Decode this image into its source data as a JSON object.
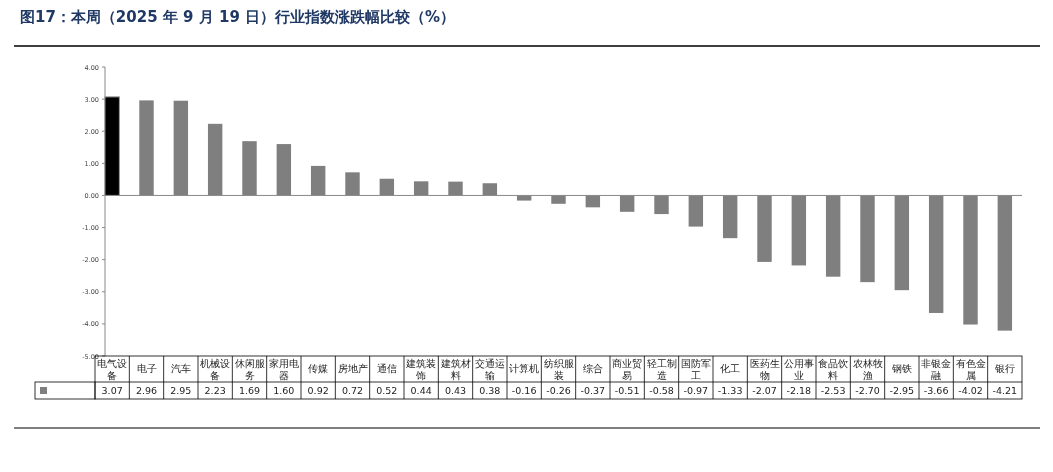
{
  "chart_data": {
    "type": "bar",
    "title": "图17：本周（2025 年 9 月 19 日）行业指数涨跌幅比较（%）",
    "categories": [
      "电气设备",
      "电子",
      "汽车",
      "机械设备",
      "休闲服务",
      "家用电器",
      "传媒",
      "房地产",
      "通信",
      "建筑装饰",
      "建筑材料",
      "交通运输",
      "计算机",
      "纺织服装",
      "综合",
      "商业贸易",
      "轻工制造",
      "国防军工",
      "化工",
      "医药生物",
      "公用事业",
      "食品饮料",
      "农林牧渔",
      "钢铁",
      "非银金融",
      "有色金属",
      "银行"
    ],
    "values": [
      3.07,
      2.96,
      2.95,
      2.23,
      1.69,
      1.6,
      0.92,
      0.72,
      0.52,
      0.44,
      0.43,
      0.38,
      -0.16,
      -0.26,
      -0.37,
      -0.51,
      -0.58,
      -0.97,
      -1.33,
      -2.07,
      -2.18,
      -2.53,
      -2.7,
      -2.95,
      -3.66,
      -4.02,
      -4.21
    ],
    "colors": [
      "#000000",
      "#7f7f7f",
      "#7f7f7f",
      "#7f7f7f",
      "#7f7f7f",
      "#7f7f7f",
      "#7f7f7f",
      "#7f7f7f",
      "#7f7f7f",
      "#7f7f7f",
      "#7f7f7f",
      "#7f7f7f",
      "#7f7f7f",
      "#7f7f7f",
      "#7f7f7f",
      "#7f7f7f",
      "#7f7f7f",
      "#7f7f7f",
      "#7f7f7f",
      "#7f7f7f",
      "#7f7f7f",
      "#7f7f7f",
      "#7f7f7f",
      "#7f7f7f",
      "#7f7f7f",
      "#7f7f7f",
      "#7f7f7f"
    ],
    "value_labels": [
      "3.07",
      "2.96",
      "2.95",
      "2.23",
      "1.69",
      "1.60",
      "0.92",
      "0.72",
      "0.52",
      "0.44",
      "0.43",
      "0.38",
      "-0.16",
      "-0.26",
      "-0.37",
      "-0.51",
      "-0.58",
      "-0.97",
      "-1.33",
      "-2.07",
      "-2.18",
      "-2.53",
      "-2.70",
      "-2.95",
      "-3.66",
      "-4.02",
      "-4.21"
    ],
    "ylim": [
      -5,
      4
    ],
    "yticks": [
      {
        "value": 4,
        "label": "4.00"
      },
      {
        "value": 3,
        "label": "3.00"
      },
      {
        "value": 2,
        "label": "2.00"
      },
      {
        "value": 1,
        "label": "1.00"
      },
      {
        "value": 0,
        "label": "0.00"
      },
      {
        "value": -1,
        "label": "-1.00"
      },
      {
        "value": -2,
        "label": "-2.00"
      },
      {
        "value": -3,
        "label": "-3.00"
      },
      {
        "value": -4,
        "label": "-4.00"
      },
      {
        "value": -5,
        "label": "-5.00"
      }
    ]
  }
}
